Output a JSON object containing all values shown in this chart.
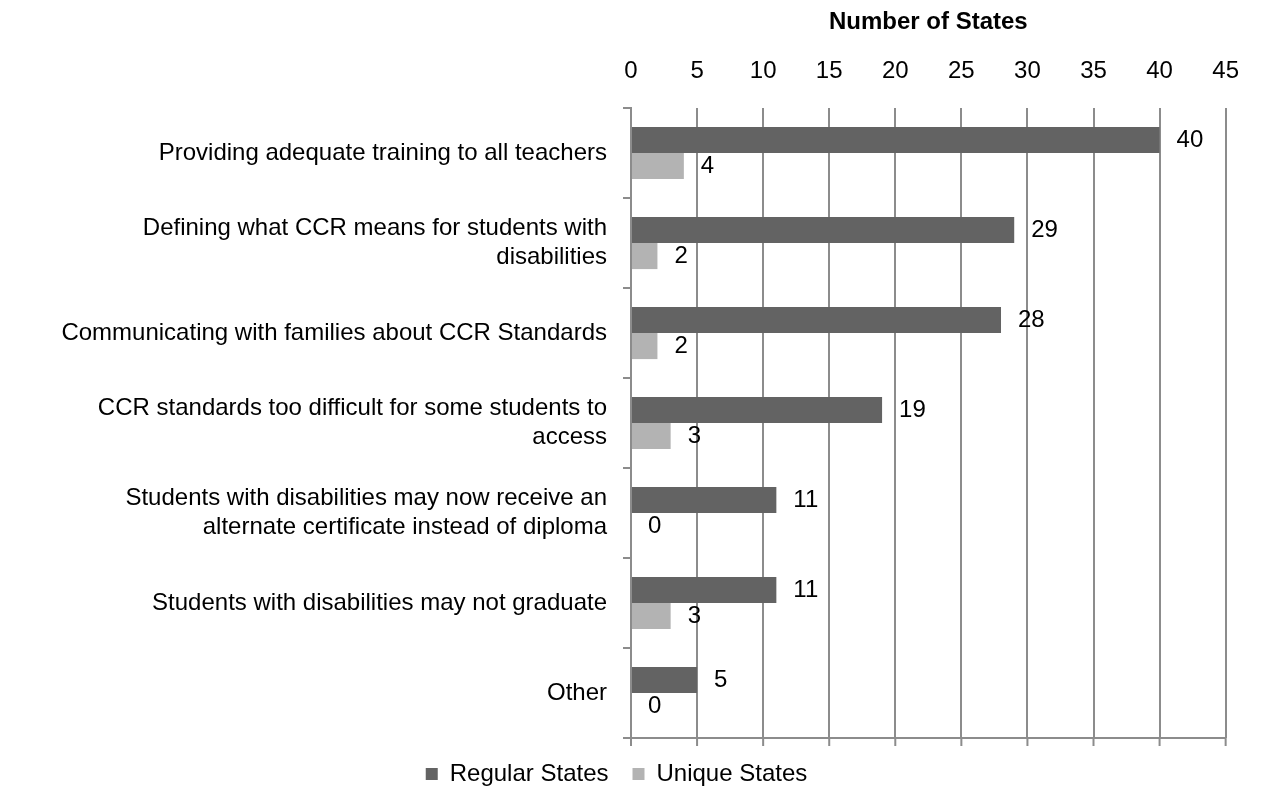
{
  "chart_data": {
    "type": "bar",
    "orientation": "horizontal",
    "xlabel": "Number of States",
    "categories": [
      "Providing adequate training to all teachers",
      "Defining what CCR means for students with disabilities",
      "Communicating with families about CCR Standards",
      "CCR standards too difficult for some students to access",
      "Students with disabilities may now receive an alternate certificate instead of diploma",
      "Students with disabilities may not graduate",
      "Other"
    ],
    "series": [
      {
        "name": "Regular States",
        "color": "#636363",
        "values": [
          40,
          29,
          28,
          19,
          11,
          11,
          5
        ]
      },
      {
        "name": "Unique States",
        "color": "#b3b3b3",
        "values": [
          4,
          2,
          2,
          3,
          0,
          3,
          0
        ]
      }
    ],
    "xlim": [
      0,
      45
    ],
    "xticks": [
      0,
      5,
      10,
      15,
      20,
      25,
      30,
      35,
      40,
      45
    ],
    "grid": "x",
    "legend": "bottom",
    "data_labels": true
  }
}
